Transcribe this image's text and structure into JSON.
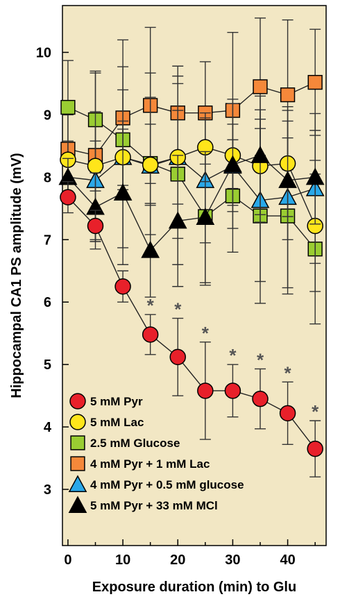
{
  "chart_data": {
    "type": "line",
    "xlabel": "Exposure duration (min) to Glu",
    "ylabel": "Hippocampal CA1 PS amplitude (mV)",
    "xlim": [
      -1,
      47
    ],
    "ylim": [
      2.1,
      10.75
    ],
    "x_ticks": [
      0,
      10,
      20,
      30,
      40
    ],
    "y_ticks": [
      3,
      4,
      5,
      6,
      7,
      8,
      9,
      10
    ],
    "background_color": "#f2e7c4",
    "grid": false,
    "legend_position": "bottom-left",
    "significance_marker": "*",
    "significance_x": [
      15,
      20,
      25,
      30,
      35,
      40,
      45
    ],
    "x": [
      0,
      5,
      10,
      15,
      20,
      25,
      30,
      35,
      40,
      45
    ],
    "series": [
      {
        "name": "5 mM Pyr",
        "marker": "circle",
        "color": "#e8202a",
        "values": [
          7.68,
          7.22,
          6.25,
          5.48,
          5.12,
          4.58,
          4.58,
          4.45,
          4.22,
          3.65
        ],
        "errors": [
          0.25,
          0.25,
          0.25,
          0.32,
          0.62,
          0.78,
          0.42,
          0.48,
          0.5,
          0.45
        ]
      },
      {
        "name": "5 mM Lac",
        "marker": "circle",
        "color": "#ffe51a",
        "values": [
          8.28,
          8.18,
          8.32,
          8.2,
          8.32,
          8.48,
          8.35,
          8.18,
          8.22,
          7.22
        ],
        "errors": [
          0.3,
          0.4,
          0.45,
          0.65,
          0.75,
          0.55,
          0.9,
          0.9,
          0.85,
          1.05
        ]
      },
      {
        "name": "2.5 mM Glucose",
        "marker": "square",
        "color": "#9acd32",
        "values": [
          9.12,
          8.92,
          8.6,
          8.22,
          8.05,
          7.37,
          7.7,
          7.38,
          7.38,
          6.85
        ],
        "errors": [
          0.75,
          0.75,
          0.8,
          1.45,
          1.45,
          1.1,
          0.9,
          1.4,
          1.25,
          1.2
        ]
      },
      {
        "name": "4 mM Pyr + 1 mM Lac",
        "marker": "square",
        "color": "#f5883a",
        "values": [
          8.45,
          8.35,
          8.95,
          9.15,
          9.03,
          9.03,
          9.07,
          9.45,
          9.32,
          9.52
        ],
        "errors": [
          0.55,
          1.35,
          1.25,
          1.25,
          0.75,
          0.82,
          1.25,
          1.1,
          1.2,
          0.85
        ]
      },
      {
        "name": "4 mM Pyr + 0.5 mM glucose",
        "marker": "triangle",
        "color": "#2aa8e8",
        "values": [
          8.0,
          7.95,
          8.32,
          8.18,
          8.32,
          7.95,
          8.18,
          7.63,
          7.68,
          7.82
        ],
        "errors": [
          0.35,
          1.1,
          1.45,
          1.1,
          1.3,
          1.0,
          1.0,
          1.3,
          1.45,
          1.2
        ]
      },
      {
        "name": "5 mM Pyr + 33 mM MCl",
        "marker": "triangle",
        "color": "#000000",
        "values": [
          8.0,
          7.52,
          7.75,
          6.83,
          7.3,
          7.36,
          8.2,
          8.35,
          7.95,
          8.0
        ],
        "errors": [
          0.3,
          0.55,
          1.15,
          0.75,
          1.05,
          1.05,
          0.65,
          0.95,
          0.95,
          0.75
        ]
      }
    ]
  }
}
